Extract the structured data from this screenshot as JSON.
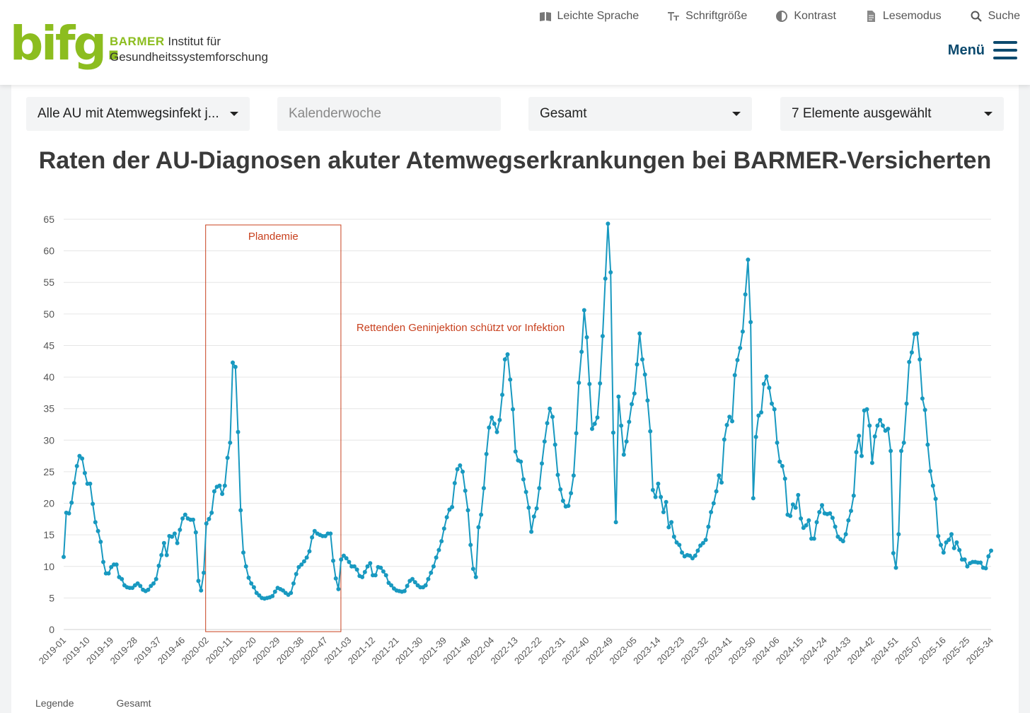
{
  "header": {
    "logo_mark": "bifg.",
    "logo_brand": "BARMER",
    "logo_line1": "Institut für",
    "logo_line2": "Gesundheitssystemforschung",
    "nav": [
      {
        "label": "Leichte Sprache",
        "icon": "book-icon"
      },
      {
        "label": "Schriftgröße",
        "icon": "text-size-icon"
      },
      {
        "label": "Kontrast",
        "icon": "contrast-icon"
      },
      {
        "label": "Lesemodus",
        "icon": "document-icon"
      },
      {
        "label": "Suche",
        "icon": "search-icon"
      }
    ],
    "menu_label": "Menü"
  },
  "filters": {
    "diagnosis": "Alle AU mit Atemwegsinfekt j...",
    "period_placeholder": "Kalenderwoche",
    "group": "Gesamt",
    "elements": "7 Elemente ausgewählt"
  },
  "colors": {
    "line": "#1899c0",
    "annotation": "#c8401e",
    "brand": "#8cbd1f",
    "menu": "#0c4a6e"
  },
  "chart_data": {
    "type": "line",
    "title": "Raten der AU-Diagnosen akuter Atemwegserkrankungen bei BARMER-Versicherten",
    "xlabel": "",
    "ylabel": "",
    "ylim": [
      0,
      65
    ],
    "yticks": [
      0,
      5,
      10,
      15,
      20,
      25,
      30,
      35,
      40,
      45,
      50,
      55,
      60,
      65
    ],
    "grid": true,
    "xtick_labels": [
      "2019-01",
      "2019-10",
      "2019-19",
      "2019-28",
      "2019-37",
      "2019-46",
      "2020-02",
      "2020-11",
      "2020-20",
      "2020-29",
      "2020-38",
      "2020-47",
      "2021-03",
      "2021-12",
      "2021-21",
      "2021-30",
      "2021-39",
      "2021-48",
      "2022-04",
      "2022-13",
      "2022-22",
      "2022-31",
      "2022-40",
      "2022-49",
      "2023-05",
      "2023-14",
      "2023-23",
      "2023-32",
      "2023-41",
      "2023-50",
      "2024-06",
      "2024-15",
      "2024-24",
      "2024-33",
      "2024-42",
      "2024-51",
      "2025-07",
      "2025-16",
      "2025-25",
      "2025-34"
    ],
    "annotations": [
      {
        "text": "Plandemie",
        "from": "2020-02",
        "to": "2020-52"
      },
      {
        "text": "Rettenden Geninjektion schützt vor Infektion"
      }
    ],
    "series": [
      {
        "name": "Gesamt",
        "values": [
          11.5,
          18.5,
          18.4,
          20.1,
          23.2,
          25.9,
          27.5,
          27.1,
          24.8,
          23.1,
          23.1,
          19.9,
          17.0,
          15.6,
          13.9,
          10.7,
          8.9,
          8.9,
          9.9,
          10.3,
          10.3,
          8.3,
          8.0,
          7.0,
          6.7,
          6.6,
          6.6,
          7.0,
          7.3,
          6.9,
          6.3,
          6.1,
          6.3,
          6.9,
          7.3,
          8.0,
          10.1,
          11.8,
          13.7,
          11.8,
          14.8,
          14.7,
          15.2,
          13.7,
          15.8,
          17.6,
          18.2,
          17.6,
          17.4,
          17.4,
          15.4,
          7.7,
          6.2,
          9.0,
          16.8,
          17.5,
          18.5,
          21.9,
          22.6,
          22.8,
          21.5,
          22.8,
          27.2,
          29.6,
          42.3,
          41.6,
          31.3,
          18.9,
          12.2,
          10.0,
          8.2,
          7.3,
          6.7,
          5.8,
          5.4,
          5.0,
          4.9,
          5.0,
          5.1,
          5.3,
          6.0,
          6.6,
          6.4,
          6.2,
          5.8,
          5.5,
          5.8,
          7.3,
          8.8,
          9.9,
          10.3,
          10.8,
          11.4,
          12.4,
          14.6,
          15.6,
          15.2,
          15.0,
          14.8,
          14.8,
          15.2,
          15.2,
          10.9,
          8.1,
          6.4,
          11.1,
          11.7,
          11.3,
          10.7,
          10.0,
          10.0,
          9.5,
          8.5,
          8.3,
          9.1,
          10.0,
          10.5,
          8.6,
          8.6,
          9.9,
          9.8,
          9.2,
          8.6,
          7.4,
          7.0,
          6.5,
          6.2,
          6.1,
          6.0,
          6.1,
          6.9,
          7.7,
          8.0,
          7.5,
          7.0,
          6.7,
          6.7,
          7.0,
          8.0,
          9.0,
          10.0,
          11.4,
          12.6,
          14.0,
          16.0,
          17.8,
          19.0,
          19.4,
          23.2,
          25.4,
          26.0,
          25.0,
          22.0,
          18.9,
          13.4,
          9.6,
          8.3,
          16.2,
          18.2,
          22.4,
          27.8,
          32.0,
          33.6,
          32.6,
          31.3,
          33.2,
          37.2,
          42.8,
          43.6,
          39.6,
          34.9,
          28.2,
          26.8,
          26.6,
          23.8,
          21.8,
          19.3,
          15.5,
          17.9,
          19.2,
          22.4,
          26.3,
          29.8,
          32.7,
          35.0,
          33.7,
          29.3,
          24.5,
          22.2,
          20.4,
          19.5,
          19.6,
          21.6,
          24.4,
          31.1,
          39.1,
          44.0,
          50.6,
          46.3,
          38.9,
          31.8,
          32.6,
          33.6,
          39.0,
          46.5,
          55.6,
          64.3,
          56.6,
          31.2,
          17.0,
          36.9,
          32.3,
          27.7,
          29.8,
          32.9,
          35.7,
          37.4,
          42.0,
          46.9,
          42.8,
          40.4,
          36.3,
          31.4,
          22.1,
          21.0,
          23.1,
          21.0,
          18.6,
          20.2,
          16.2,
          17.0,
          14.7,
          13.8,
          13.4,
          12.2,
          11.6,
          11.8,
          11.7,
          11.3,
          11.7,
          12.5,
          13.3,
          13.7,
          14.2,
          16.3,
          18.6,
          20.0,
          21.9,
          24.4,
          23.3,
          30.1,
          32.4,
          33.7,
          33.0,
          40.3,
          42.7,
          44.6,
          47.2,
          53.1,
          58.6,
          48.7,
          20.8,
          30.5,
          33.9,
          34.4,
          38.9,
          40.1,
          38.3,
          35.8,
          34.9,
          29.6,
          26.6,
          25.9,
          23.9,
          18.2,
          18.0,
          19.8,
          19.3,
          21.3,
          17.6,
          16.1,
          16.5,
          17.3,
          14.4,
          14.4,
          17.0,
          18.6,
          19.7,
          18.4,
          18.3,
          18.4,
          17.7,
          16.3,
          14.7,
          14.3,
          14.0,
          15.1,
          17.3,
          18.8,
          21.2,
          28.1,
          30.7,
          27.5,
          34.7,
          34.9,
          32.3,
          26.4,
          30.6,
          32.3,
          33.2,
          32.3,
          31.5,
          31.8,
          28.3,
          12.1,
          9.8,
          15.1,
          28.3,
          29.6,
          35.8,
          42.4,
          43.9,
          46.8,
          46.9,
          42.8,
          36.6,
          34.8,
          29.3,
          25.1,
          22.8,
          20.7,
          14.8,
          13.4,
          12.2,
          13.8,
          14.2,
          15.1,
          12.9,
          13.8,
          12.6,
          11.1,
          11.1,
          10.0,
          10.5,
          10.7,
          10.7,
          10.6,
          10.6,
          9.8,
          9.7,
          11.6,
          12.5
        ]
      }
    ]
  },
  "legend": [
    "Legende",
    "Gesamt"
  ]
}
